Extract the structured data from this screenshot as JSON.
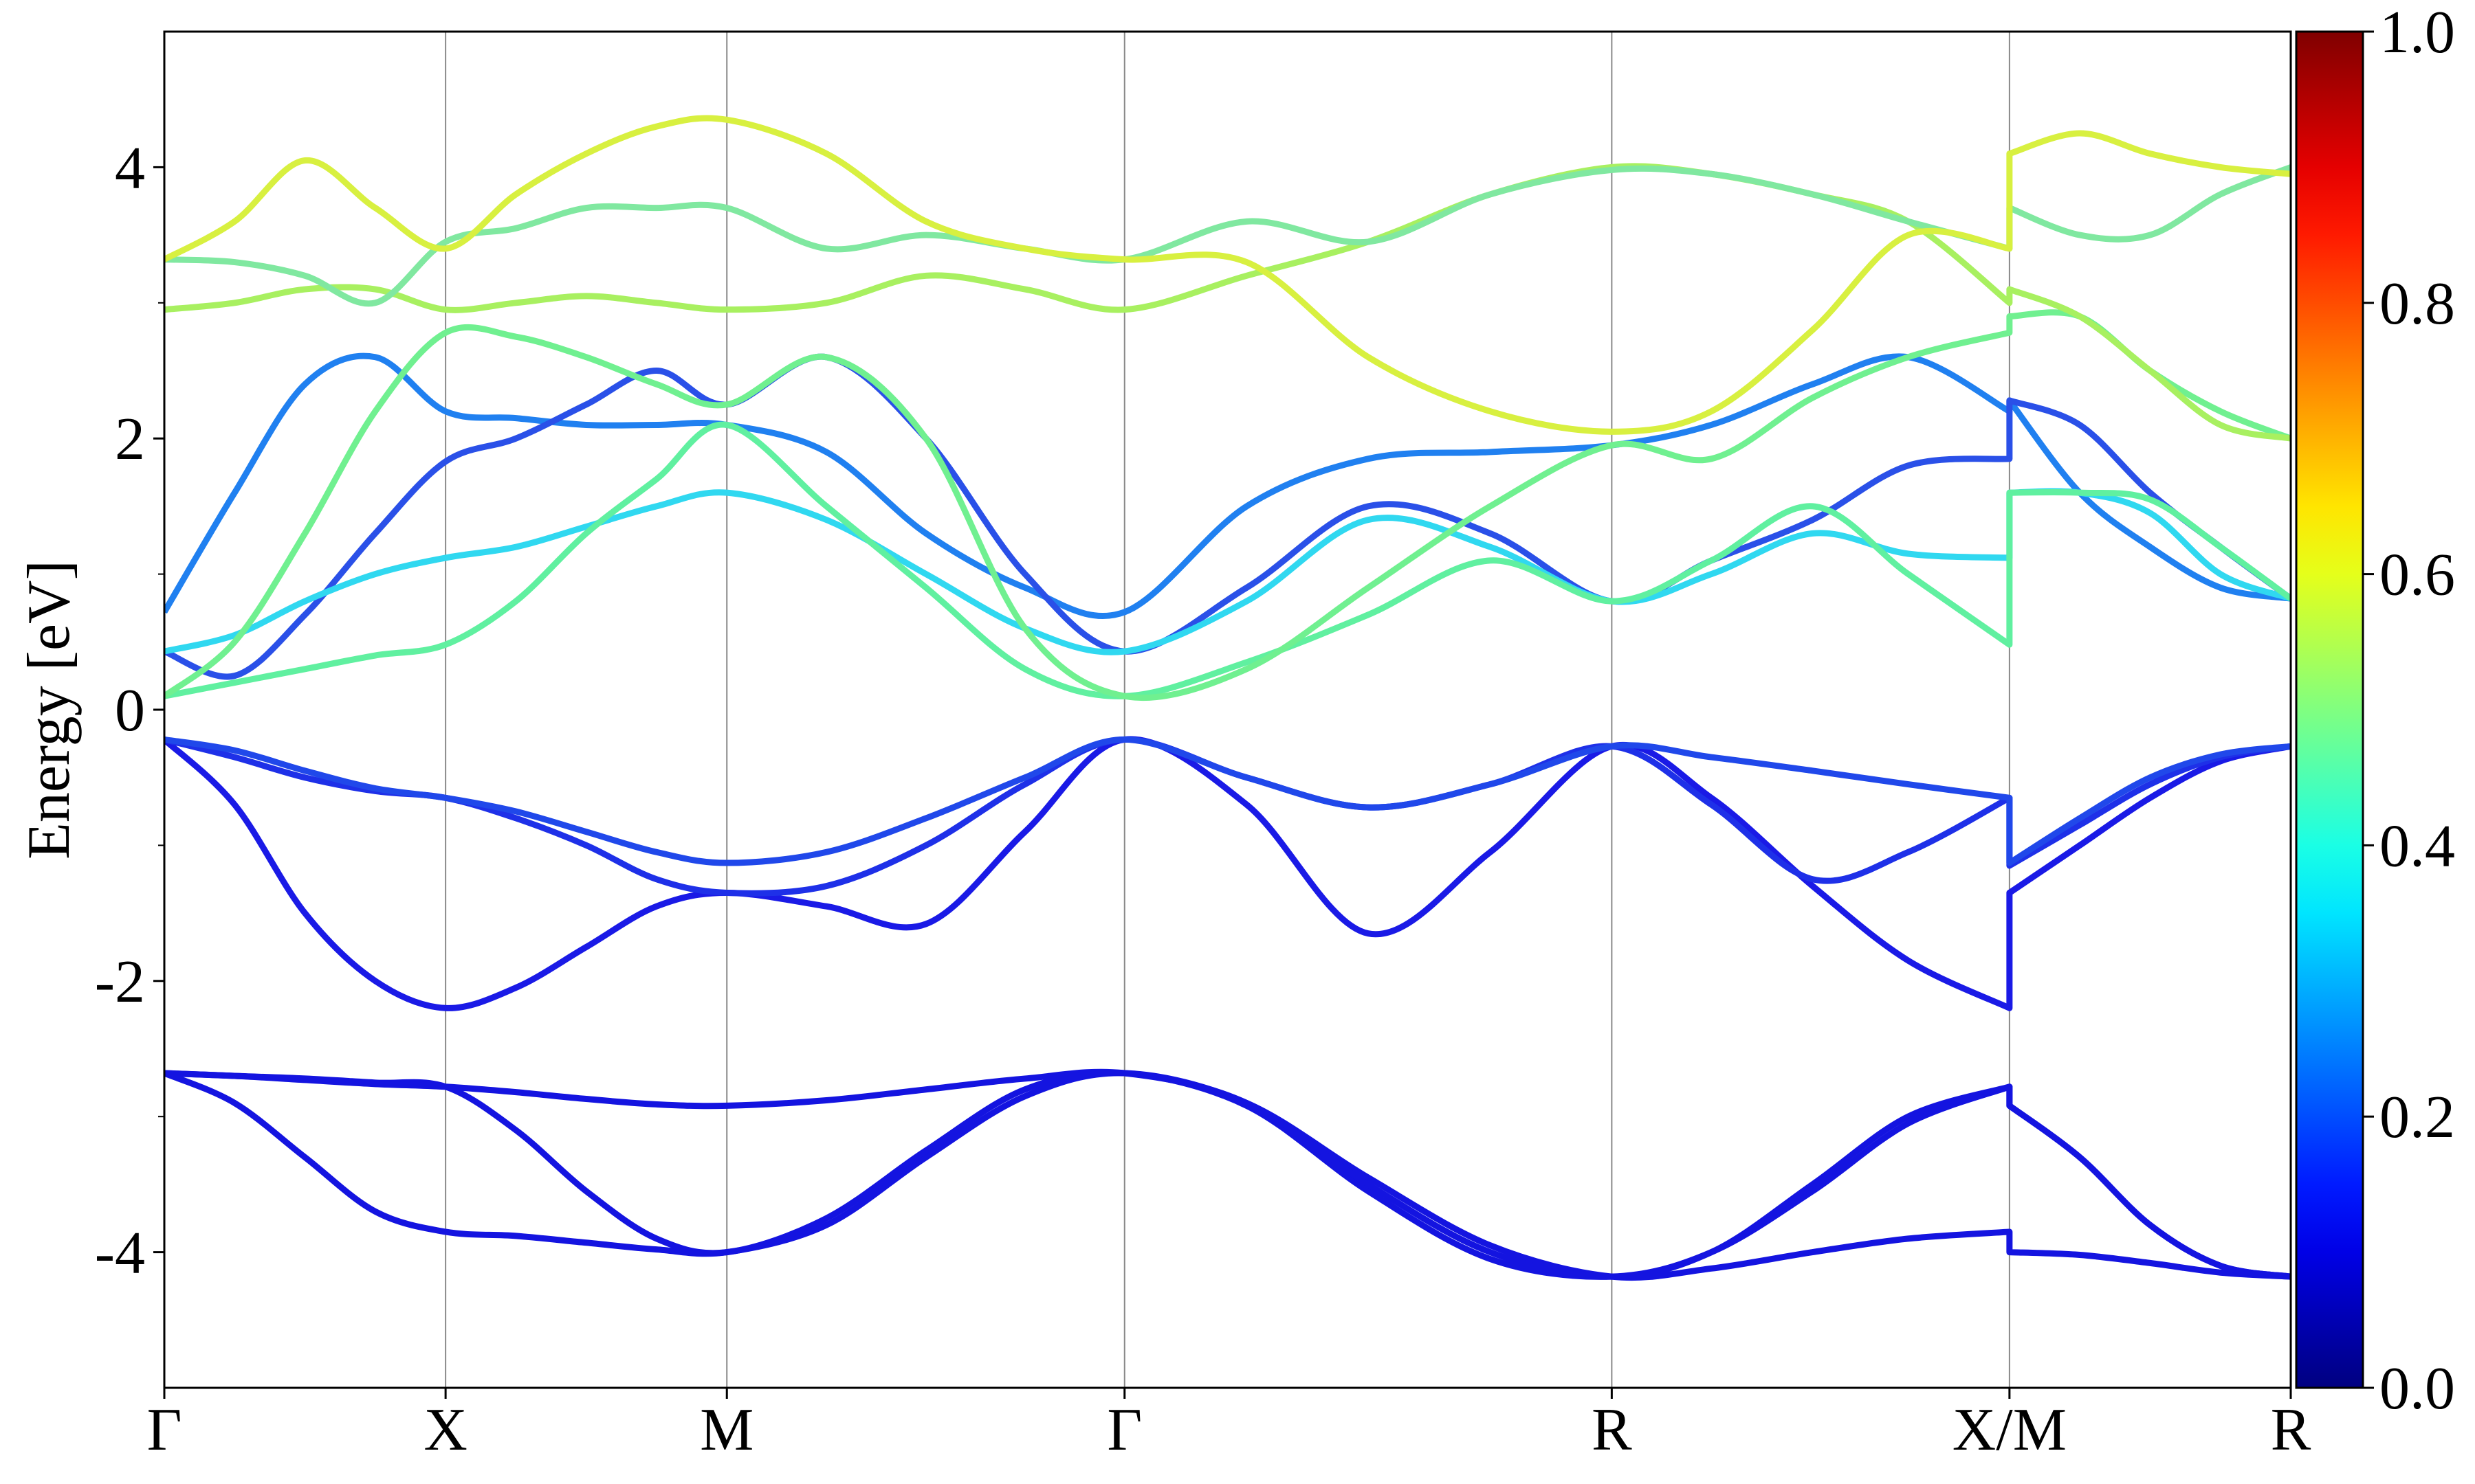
{
  "chart_data": {
    "type": "line",
    "ylabel": "Energy [eV]",
    "x": [
      0,
      0.125,
      0.25,
      0.375,
      0.5,
      0.625,
      0.75,
      0.875,
      1.0,
      1.177,
      1.354,
      1.53,
      1.707,
      1.924,
      2.14,
      2.357,
      2.573,
      2.75,
      2.93,
      3.1,
      3.28,
      3.28,
      3.405,
      3.53,
      3.655,
      3.78
    ],
    "xlim": [
      0,
      3.78
    ],
    "xticks": [
      {
        "value": 0,
        "label": "Γ"
      },
      {
        "value": 0.5,
        "label": "X"
      },
      {
        "value": 1.0,
        "label": "M"
      },
      {
        "value": 1.707,
        "label": "Γ"
      },
      {
        "value": 2.573,
        "label": "R"
      },
      {
        "value": 3.28,
        "label": "X/M"
      },
      {
        "value": 3.78,
        "label": "R"
      }
    ],
    "ylim": [
      -5,
      5
    ],
    "yticks": [
      -4,
      -2,
      0,
      2,
      4
    ],
    "yminorticks": [
      -3,
      -1,
      1,
      3
    ],
    "grid": "x",
    "colorbar": {
      "colormap": "jet",
      "lim": [
        0,
        1
      ],
      "ticks": [
        {
          "value": 0,
          "label": "0.0"
        },
        {
          "value": 0.2,
          "label": "0.2"
        },
        {
          "value": 0.4,
          "label": "0.4"
        },
        {
          "value": 0.6,
          "label": "0.6"
        },
        {
          "value": 0.8,
          "label": "0.8"
        },
        {
          "value": 1,
          "label": "1.0"
        }
      ]
    },
    "series": [
      {
        "color": "#1414e0",
        "values": [
          -2.68,
          -2.9,
          -3.3,
          -3.7,
          -3.85,
          -3.88,
          -3.93,
          -3.98,
          -4.0,
          -3.8,
          -3.3,
          -2.85,
          -2.68,
          -2.9,
          -3.45,
          -3.95,
          -4.18,
          -4.12,
          -4.0,
          -3.9,
          -3.85,
          -4.0,
          -4.02,
          -4.08,
          -4.15,
          -4.18
        ]
      },
      {
        "color": "#1414e0",
        "values": [
          -2.68,
          -2.7,
          -2.72,
          -2.75,
          -2.78,
          -3.1,
          -3.55,
          -3.9,
          -4.0,
          -3.75,
          -3.25,
          -2.8,
          -2.68,
          -2.92,
          -3.55,
          -4.05,
          -4.18,
          -4.0,
          -3.55,
          -3.05,
          -2.78,
          -2.92,
          -3.3,
          -3.8,
          -4.1,
          -4.18
        ]
      },
      {
        "color": "#1414e0",
        "values": [
          -2.68,
          -2.7,
          -2.73,
          -2.76,
          -2.78,
          -2.82,
          -2.87,
          -2.91,
          -2.92,
          -2.88,
          -2.8,
          -2.72,
          -2.68,
          -2.9,
          -3.5,
          -4.0,
          -4.18,
          -4.0,
          -3.5,
          -3.0,
          -2.78,
          -2.92,
          -3.3,
          -3.8,
          -4.1,
          -4.18
        ]
      },
      {
        "color": "#1a1ae6",
        "values": [
          -0.22,
          -0.7,
          -1.5,
          -2.0,
          -2.2,
          -2.05,
          -1.75,
          -1.45,
          -1.35,
          -1.45,
          -1.58,
          -0.9,
          -0.22,
          -0.7,
          -1.65,
          -1.05,
          -0.27,
          -0.65,
          -1.3,
          -1.85,
          -2.2,
          -1.35,
          -1.0,
          -0.65,
          -0.38,
          -0.27
        ]
      },
      {
        "color": "#1e30e8",
        "values": [
          -0.22,
          -0.35,
          -0.5,
          -0.6,
          -0.65,
          -0.8,
          -1.0,
          -1.25,
          -1.35,
          -1.3,
          -1.0,
          -0.55,
          -0.22,
          -0.5,
          -0.72,
          -0.55,
          -0.27,
          -0.7,
          -1.25,
          -1.05,
          -0.65,
          -1.15,
          -0.85,
          -0.55,
          -0.35,
          -0.27
        ]
      },
      {
        "color": "#2048ea",
        "values": [
          -0.22,
          -0.3,
          -0.45,
          -0.58,
          -0.65,
          -0.75,
          -0.9,
          -1.05,
          -1.13,
          -1.05,
          -0.8,
          -0.5,
          -0.22,
          -0.5,
          -0.72,
          -0.55,
          -0.27,
          -0.35,
          -0.45,
          -0.55,
          -0.65,
          -1.13,
          -0.8,
          -0.5,
          -0.33,
          -0.27
        ]
      },
      {
        "color": "#2080f0",
        "values": [
          0.72,
          1.6,
          2.4,
          2.6,
          2.2,
          2.15,
          2.1,
          2.1,
          2.1,
          1.9,
          1.3,
          0.9,
          0.72,
          1.5,
          1.85,
          1.9,
          1.95,
          2.1,
          2.4,
          2.6,
          2.2,
          2.28,
          1.6,
          1.2,
          0.9,
          0.82
        ]
      },
      {
        "color": "#2a50e8",
        "values": [
          0.43,
          0.25,
          0.7,
          1.3,
          1.83,
          2.0,
          2.25,
          2.5,
          2.25,
          2.6,
          2.0,
          1.0,
          0.43,
          0.9,
          1.5,
          1.3,
          0.8,
          1.1,
          1.4,
          1.8,
          1.85,
          2.28,
          2.1,
          1.6,
          1.2,
          0.82
        ]
      },
      {
        "color": "#30d8f0",
        "values": [
          0.43,
          0.55,
          0.8,
          1.0,
          1.12,
          1.2,
          1.35,
          1.5,
          1.6,
          1.4,
          1.0,
          0.6,
          0.43,
          0.8,
          1.4,
          1.2,
          0.8,
          1.0,
          1.3,
          1.15,
          1.12,
          1.6,
          1.6,
          1.45,
          1.0,
          0.82
        ]
      },
      {
        "color": "#60f0a0",
        "values": [
          0.1,
          0.2,
          0.3,
          0.4,
          0.48,
          0.8,
          1.3,
          1.7,
          2.1,
          1.5,
          0.9,
          0.3,
          0.1,
          0.35,
          0.7,
          1.1,
          0.8,
          1.1,
          1.5,
          1.0,
          0.48,
          1.6,
          1.6,
          1.55,
          1.2,
          0.82
        ]
      },
      {
        "color": "#70f090",
        "values": [
          0.1,
          0.5,
          1.3,
          2.2,
          2.78,
          2.75,
          2.6,
          2.4,
          2.25,
          2.6,
          2.0,
          0.6,
          0.1,
          0.3,
          0.9,
          1.5,
          1.95,
          1.85,
          2.3,
          2.6,
          2.78,
          2.9,
          2.9,
          2.5,
          2.2,
          2.0
        ]
      },
      {
        "color": "#a8f060",
        "values": [
          2.95,
          3.0,
          3.1,
          3.1,
          2.95,
          3.0,
          3.05,
          3.0,
          2.95,
          3.0,
          3.2,
          3.1,
          2.95,
          3.2,
          3.45,
          3.8,
          4.0,
          3.95,
          3.8,
          3.6,
          3.0,
          3.1,
          2.9,
          2.5,
          2.1,
          2.0
        ]
      },
      {
        "color": "#80e8a0",
        "values": [
          3.32,
          3.3,
          3.2,
          3.0,
          3.45,
          3.55,
          3.7,
          3.7,
          3.7,
          3.4,
          3.5,
          3.4,
          3.32,
          3.6,
          3.45,
          3.8,
          3.98,
          3.95,
          3.8,
          3.6,
          3.4,
          3.7,
          3.5,
          3.5,
          3.8,
          4.0
        ]
      },
      {
        "color": "#d8f040",
        "values": [
          3.32,
          3.6,
          4.05,
          3.7,
          3.4,
          3.8,
          4.1,
          4.3,
          4.35,
          4.1,
          3.6,
          3.4,
          3.32,
          3.3,
          2.6,
          2.2,
          2.05,
          2.2,
          2.8,
          3.5,
          3.4,
          4.1,
          4.25,
          4.1,
          4.0,
          3.95
        ]
      }
    ]
  }
}
